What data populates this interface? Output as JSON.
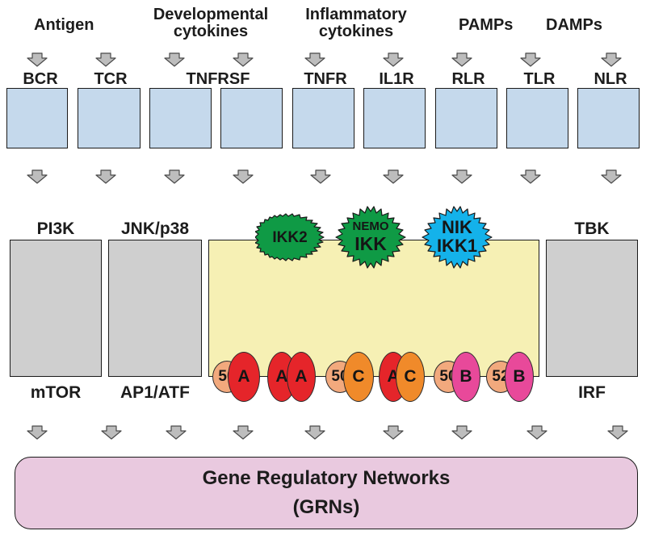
{
  "stimuli": {
    "antigen": "Antigen",
    "developmental_1": "Developmental",
    "developmental_2": "cytokines",
    "inflammatory_1": "Inflammatory",
    "inflammatory_2": "cytokines",
    "pamps": "PAMPs",
    "damps": "DAMPs"
  },
  "receptors": {
    "bcr": "BCR",
    "tcr": "TCR",
    "tnfrsf": "TNFRSF",
    "tnfr": "TNFR",
    "il1r": "IL1R",
    "rlr": "RLR",
    "tlr": "TLR",
    "nlr": "NLR"
  },
  "pathways": {
    "pi3k": "PI3K",
    "mtor": "mTOR",
    "jnk": "JNK/p38",
    "ap1": "AP1/ATF",
    "tbk": "TBK",
    "irf": "IRF"
  },
  "kinases": {
    "ikk2": "IKK2",
    "nemo": "NEMO",
    "ikk": "IKK",
    "nik": "NIK",
    "ikk1": "IKK1"
  },
  "nfkb_dimers": [
    {
      "left": "50",
      "right": "A"
    },
    {
      "left": "A",
      "right": "A"
    },
    {
      "left": "50",
      "right": "C"
    },
    {
      "left": "A",
      "right": "C"
    },
    {
      "left": "50",
      "right": "B"
    },
    {
      "left": "52",
      "right": "B"
    }
  ],
  "output": {
    "line1": "Gene Regulatory Networks",
    "line2": "(GRNs)"
  },
  "colors": {
    "receptor_box": "#c5d9ec",
    "signaling_box": "#cfcfcf",
    "nfkb_box": "#f6f0b4",
    "grn_box": "#e9c9df",
    "ikk2_green": "#0f9a45",
    "nik_blue": "#14b2ea",
    "subunit_50_52": "#f2a97d",
    "subunit_RelA": "#e5252a",
    "subunit_cRel": "#f08a2a",
    "subunit_RelB": "#e8499a",
    "arrow_gray": "#bdbdbd"
  }
}
